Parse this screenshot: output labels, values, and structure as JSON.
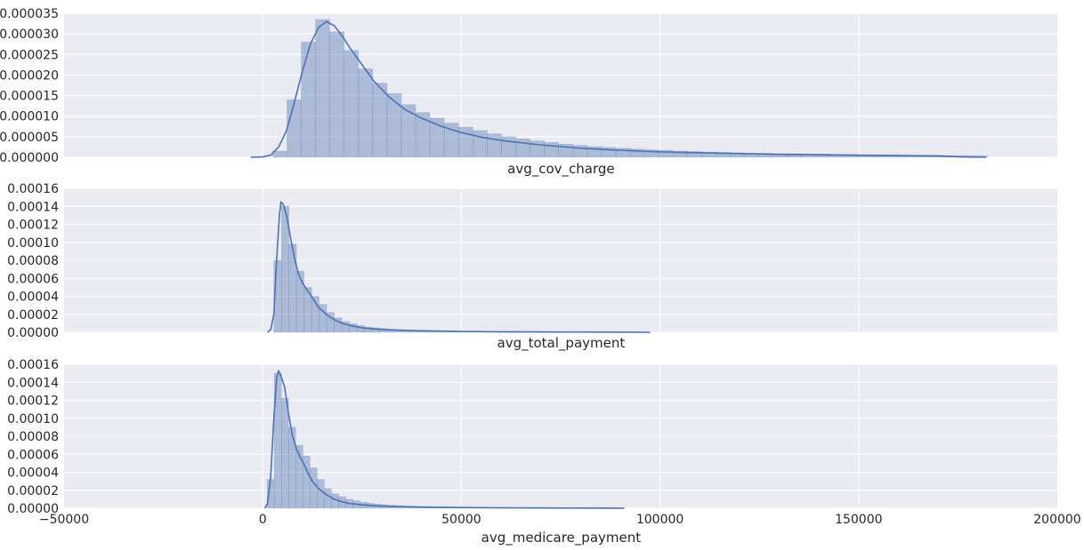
{
  "figure": {
    "colors": {
      "background": "#eaeaf2",
      "grid": "#ffffff",
      "hist_fill": "#4c72b0",
      "kde_line": "#4c72b0",
      "text": "#262626"
    },
    "shared_x": true
  },
  "chart_data": [
    {
      "type": "histogram",
      "xlabel": "avg_cov_charge",
      "xlim": [
        -50000,
        200000
      ],
      "ylim": [
        0,
        3.5e-05
      ],
      "grid": true,
      "ytick_labels": [
        "0.000000",
        "0.000005",
        "0.000010",
        "0.000015",
        "0.000020",
        "0.000025",
        "0.000030",
        "0.000035"
      ],
      "ytick_values": [
        0,
        5e-06,
        1e-05,
        1.5e-05,
        2e-05,
        2.5e-05,
        3e-05,
        3.5e-05
      ],
      "hist": {
        "bin_start": 2500,
        "bin_width": 3600,
        "values": [
          1.5e-06,
          1.4e-05,
          2.8e-05,
          3.35e-05,
          3.05e-05,
          2.6e-05,
          2.15e-05,
          1.8e-05,
          1.55e-05,
          1.28e-05,
          1.09e-05,
          9.5e-06,
          8.3e-06,
          7.3e-06,
          6.5e-06,
          5.7e-06,
          5e-06,
          4.5e-06,
          4e-06,
          3.6e-06,
          3.2e-06,
          2.9e-06,
          2.6e-06,
          2.4e-06,
          2.2e-06,
          2e-06,
          1.8e-06,
          1.7e-06,
          1.5e-06,
          1.4e-06,
          1.3e-06,
          1.2e-06,
          1.1e-06,
          1e-06,
          1e-06,
          9e-07,
          9e-07,
          8e-07,
          8e-07,
          7e-07,
          7e-07,
          6e-07,
          6e-07,
          6e-07,
          5e-07,
          5e-07,
          5e-07,
          4e-07,
          4e-07,
          4e-07
        ]
      },
      "kde": {
        "x": [
          -3000,
          0,
          2000,
          4000,
          6000,
          8000,
          10000,
          12000,
          14000,
          16000,
          18000,
          20000,
          22000,
          25000,
          28000,
          32000,
          36000,
          40000,
          45000,
          50000,
          55000,
          60000,
          70000,
          80000,
          90000,
          100000,
          110000,
          120000,
          130000,
          140000,
          150000,
          160000,
          170000,
          176000,
          182000
        ],
        "y": [
          0,
          1e-07,
          5e-07,
          2.5e-06,
          6.5e-06,
          1.35e-05,
          2.1e-05,
          2.75e-05,
          3.15e-05,
          3.3e-05,
          3.2e-05,
          2.95e-05,
          2.65e-05,
          2.25e-05,
          1.85e-05,
          1.45e-05,
          1.15e-05,
          9.5e-06,
          7.5e-06,
          6e-06,
          4.9e-06,
          4.1e-06,
          3e-06,
          2.2e-06,
          1.7e-06,
          1.3e-06,
          1.1e-06,
          9e-07,
          7e-07,
          6e-07,
          5e-07,
          4e-07,
          3e-07,
          1e-07,
          0
        ]
      }
    },
    {
      "type": "histogram",
      "xlabel": "avg_total_payment",
      "xlim": [
        -50000,
        200000
      ],
      "ylim": [
        0,
        0.00016
      ],
      "grid": true,
      "ytick_labels": [
        "0.00000",
        "0.00002",
        "0.00004",
        "0.00006",
        "0.00008",
        "0.00010",
        "0.00012",
        "0.00014",
        "0.00016"
      ],
      "ytick_values": [
        0,
        2e-05,
        4e-05,
        6e-05,
        8e-05,
        0.0001,
        0.00012,
        0.00014,
        0.00016
      ],
      "hist": {
        "bin_start": 2800,
        "bin_width": 1900,
        "values": [
          8e-05,
          0.00014,
          9.8e-05,
          6.8e-05,
          5e-05,
          4e-05,
          3.1e-05,
          2.2e-05,
          1.6e-05,
          1.2e-05,
          9.5e-06,
          7.5e-06,
          6e-06,
          5e-06,
          4.2e-06,
          3.5e-06,
          3e-06,
          2.5e-06,
          2.1e-06,
          1.8e-06,
          1.5e-06,
          1.2e-06,
          1e-06,
          8e-07,
          6e-07,
          5e-07,
          4e-07,
          3e-07,
          3e-07,
          2e-07,
          2e-07,
          2e-07,
          1e-07,
          1e-07,
          1e-07,
          1e-07,
          1e-07,
          1e-07,
          1e-07,
          1e-07,
          1e-07,
          1e-07,
          1e-07,
          1e-07,
          1e-07,
          1e-07,
          1e-07,
          1e-07,
          1e-07,
          1e-07
        ]
      },
      "kde": {
        "x": [
          1200,
          2000,
          2800,
          3500,
          4200,
          4600,
          5200,
          6000,
          7000,
          8000,
          9000,
          10000,
          11000,
          12000,
          13000,
          14000,
          16000,
          18000,
          20000,
          22000,
          25000,
          28000,
          32000,
          36000,
          40000,
          50000,
          60000,
          70000,
          80000,
          90000,
          97500
        ],
        "y": [
          0,
          3e-06,
          2e-05,
          8e-05,
          0.00013,
          0.000145,
          0.000142,
          0.00013,
          0.000105,
          8.2e-05,
          6.5e-05,
          5.5e-05,
          4.8e-05,
          4.2e-05,
          3.5e-05,
          2.8e-05,
          2e-05,
          1.4e-05,
          1e-05,
          7.5e-06,
          5e-06,
          3.8e-06,
          2.8e-06,
          2.2e-06,
          1.7e-06,
          1e-06,
          6e-07,
          4e-07,
          3e-07,
          2e-07,
          0
        ]
      }
    },
    {
      "type": "histogram",
      "xlabel": "avg_medicare_payment",
      "xlim": [
        -50000,
        200000
      ],
      "ylim": [
        0,
        0.00016
      ],
      "grid": true,
      "ytick_labels": [
        "0.00000",
        "0.00002",
        "0.00004",
        "0.00006",
        "0.00008",
        "0.00010",
        "0.00012",
        "0.00014",
        "0.00016"
      ],
      "ytick_values": [
        0,
        2e-05,
        4e-05,
        6e-05,
        8e-05,
        0.0001,
        0.00012,
        0.00014,
        0.00016
      ],
      "xtick_labels": [
        "−50000",
        "0",
        "50000",
        "100000",
        "150000",
        "200000"
      ],
      "xtick_values": [
        -50000,
        0,
        50000,
        100000,
        150000,
        200000
      ],
      "hist": {
        "bin_start": 1100,
        "bin_width": 1800,
        "values": [
          3.2e-05,
          0.00015,
          0.000122,
          9e-05,
          7e-05,
          5.8e-05,
          4.5e-05,
          3.2e-05,
          2.2e-05,
          1.6e-05,
          1.3e-05,
          1e-05,
          8.5e-06,
          6.8e-06,
          5.5e-06,
          4.5e-06,
          3.8e-06,
          3.2e-06,
          2.8e-06,
          2.4e-06,
          2e-06,
          1.7e-06,
          1.4e-06,
          1.2e-06,
          1e-06,
          8e-07,
          6e-07,
          5e-07,
          4e-07,
          3e-07,
          3e-07,
          2e-07,
          2e-07,
          2e-07,
          1e-07,
          1e-07,
          1e-07,
          1e-07,
          1e-07,
          1e-07,
          1e-07,
          1e-07,
          1e-07,
          1e-07,
          1e-07,
          1e-07,
          1e-07,
          1e-07,
          1e-07,
          1e-07
        ]
      },
      "kde": {
        "x": [
          500,
          1200,
          2000,
          2800,
          3500,
          4000,
          4500,
          5500,
          6500,
          7500,
          8500,
          9500,
          10500,
          11500,
          12500,
          14000,
          16000,
          18000,
          20000,
          22000,
          25000,
          28000,
          32000,
          36000,
          40000,
          50000,
          60000,
          70000,
          80000,
          90000,
          91000
        ],
        "y": [
          0,
          5e-06,
          3.5e-05,
          0.0001,
          0.000145,
          0.000153,
          0.000148,
          0.000135,
          0.000105,
          8e-05,
          6.6e-05,
          5.6e-05,
          4.8e-05,
          3.8e-05,
          3e-05,
          2.2e-05,
          1.5e-05,
          1e-05,
          7.2e-06,
          5.2e-06,
          3.8e-06,
          2.8e-06,
          2.2e-06,
          1.7e-06,
          1.3e-06,
          8e-07,
          5e-07,
          3e-07,
          2e-07,
          1e-07,
          0
        ]
      }
    }
  ]
}
